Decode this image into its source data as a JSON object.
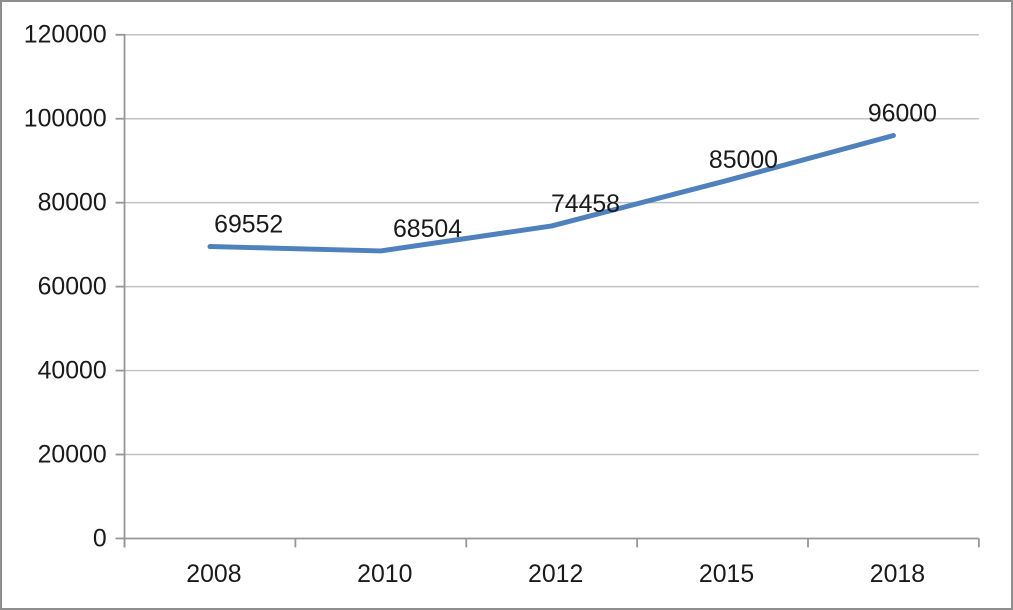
{
  "chart_data": {
    "type": "line",
    "title": "",
    "categories": [
      "2008",
      "2010",
      "2012",
      "2015",
      "2018"
    ],
    "series": [
      {
        "name": "",
        "values": [
          69552,
          68504,
          74458,
          85000,
          96000
        ],
        "data_labels": [
          "69552",
          "68504",
          "74458",
          "85000",
          "96000"
        ]
      }
    ],
    "xlabel": "",
    "ylabel": "",
    "ylim": [
      0,
      120000
    ],
    "ytick_step": 20000,
    "ytick_labels": [
      "0",
      "20000",
      "40000",
      "60000",
      "80000",
      "100000",
      "120000"
    ],
    "grid": "horizontal",
    "legend": "none",
    "label_dx": [
      39,
      47,
      34,
      21,
      9
    ],
    "colors": {
      "line": "#4F81BD",
      "gridline": "#c2c2c2",
      "axis": "#969696",
      "text": "#1a1a1a",
      "frame_border": "#8e8e8e",
      "background": "#ffffff"
    }
  }
}
